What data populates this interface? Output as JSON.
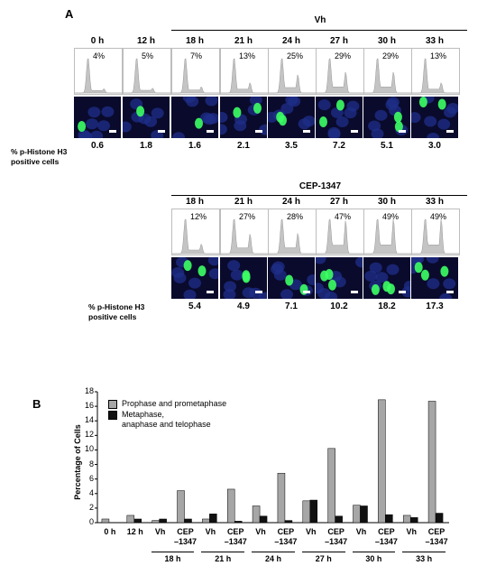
{
  "panel_a": {
    "letter": "A",
    "vh_group": "Vh",
    "cep_group": "CEP-1347",
    "row_label_line1": "% p-Histone H3",
    "row_label_line2": "positive cells",
    "vh_series": [
      {
        "time": "0 h",
        "g2m": "4%",
        "p_histone": "0.6"
      },
      {
        "time": "12 h",
        "g2m": "5%",
        "p_histone": "1.8"
      },
      {
        "time": "18 h",
        "g2m": "7%",
        "p_histone": "1.6"
      },
      {
        "time": "21 h",
        "g2m": "13%",
        "p_histone": "2.1"
      },
      {
        "time": "24 h",
        "g2m": "25%",
        "p_histone": "3.5"
      },
      {
        "time": "27 h",
        "g2m": "29%",
        "p_histone": "7.2"
      },
      {
        "time": "30 h",
        "g2m": "29%",
        "p_histone": "5.1"
      },
      {
        "time": "33 h",
        "g2m": "13%",
        "p_histone": "3.0"
      }
    ],
    "cep_series": [
      {
        "time": "18 h",
        "g2m": "12%",
        "p_histone": "5.4"
      },
      {
        "time": "21 h",
        "g2m": "27%",
        "p_histone": "4.9"
      },
      {
        "time": "24 h",
        "g2m": "28%",
        "p_histone": "7.1"
      },
      {
        "time": "27 h",
        "g2m": "47%",
        "p_histone": "10.2"
      },
      {
        "time": "30 h",
        "g2m": "49%",
        "p_histone": "18.2"
      },
      {
        "time": "33 h",
        "g2m": "49%",
        "p_histone": "17.3"
      }
    ]
  },
  "panel_b": {
    "letter": "B",
    "colors": {
      "prophase": "#a6a6a6",
      "metaphase": "#111111"
    }
  },
  "chart_data": {
    "type": "bar",
    "ylabel": "Percentage of Cells",
    "ylim": [
      0,
      18
    ],
    "yticks": [
      "0",
      "2",
      "4",
      "6",
      "8",
      "10",
      "12",
      "14",
      "16",
      "18"
    ],
    "categories": [
      "0 h",
      "12 h",
      "Vh",
      "CEP\n–1347",
      "Vh",
      "CEP\n–1347",
      "Vh",
      "CEP\n–1347",
      "Vh",
      "CEP\n–1347",
      "Vh",
      "CEP\n–1347",
      "Vh",
      "CEP\n–1347"
    ],
    "groups": [
      "18 h",
      "21 h",
      "24 h",
      "27 h",
      "30 h",
      "33 h"
    ],
    "series": [
      {
        "name": "Prophase and prometaphase",
        "values": [
          0.5,
          1.0,
          0.3,
          4.4,
          0.5,
          4.6,
          2.3,
          6.8,
          3.0,
          10.2,
          2.4,
          16.9,
          1.0,
          16.7
        ]
      },
      {
        "name": "Metaphase,\nanaphase and telophase",
        "values": [
          0.0,
          0.5,
          0.5,
          0.5,
          1.2,
          0.2,
          0.9,
          0.3,
          3.1,
          0.9,
          2.3,
          1.1,
          0.7,
          1.3
        ]
      }
    ],
    "legend": "top-left",
    "grid": false
  }
}
